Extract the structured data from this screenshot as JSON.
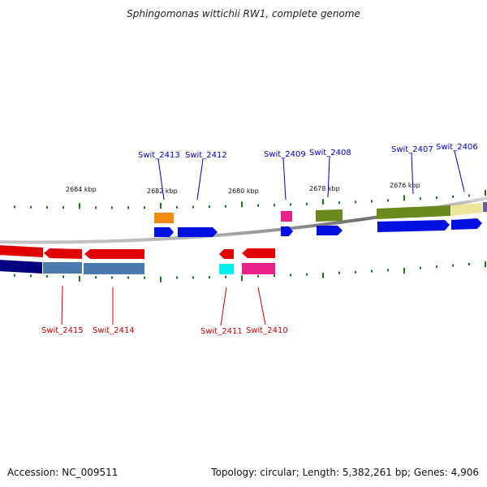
{
  "title": "Sphingomonas wittichii RW1, complete genome",
  "footer": {
    "accession_label": "Accession:",
    "accession_value": "NC_009511",
    "topology_label": "Topology:",
    "topology_value": "circular",
    "length_label": "Length:",
    "length_value": "5,382,261 bp",
    "genes_label": "Genes:",
    "genes_value": "4,906"
  },
  "scale_labels": [
    "2684 kbp",
    "2682 kbp",
    "2680 kbp",
    "2678 kbp",
    "2676 kbp"
  ],
  "colors": {
    "label_forward": "#0000cc",
    "label_reverse": "#cc0000",
    "tick": "#1a7a1a",
    "backbone": "#999999"
  },
  "gene_labels_top": [
    "Swit_2413",
    "Swit_2412",
    "Swit_2409",
    "Swit_2408",
    "Swit_2407",
    "Swit_2406"
  ],
  "gene_labels_bottom": [
    "Swit_2415",
    "Swit_2414",
    "Swit_2411",
    "Swit_2410"
  ]
}
